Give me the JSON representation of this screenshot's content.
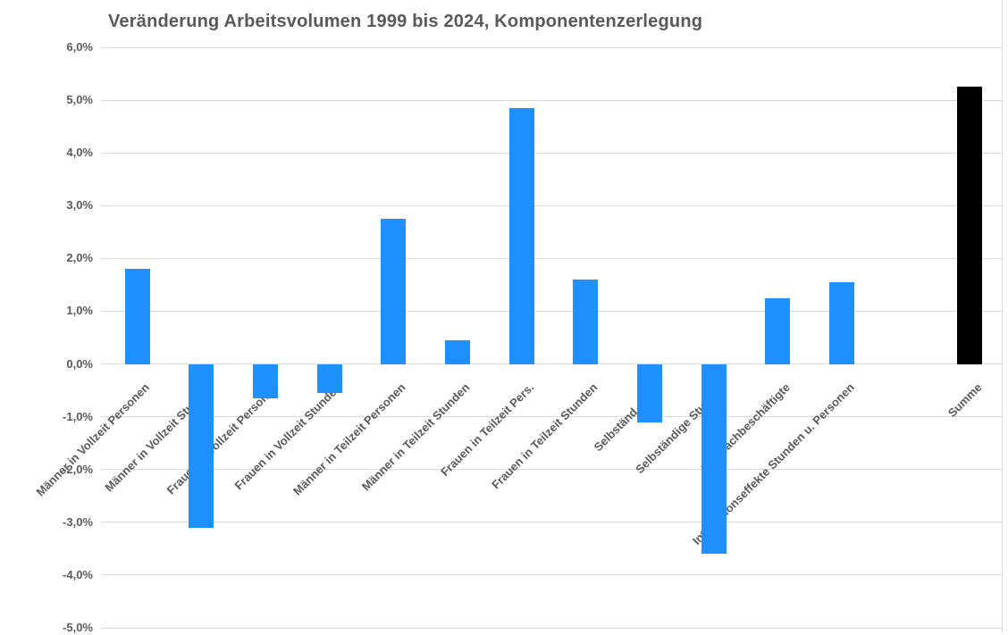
{
  "chart_data": {
    "type": "bar",
    "title": "Veränderung Arbeitsvolumen 1999 bis 2024, Komponentenzerlegung",
    "categories": [
      "Männer in Vollzeit Personen",
      "Männer in Vollzeit Stunden",
      "Frauen in Vollzeit Personen",
      "Frauen in Vollzeit Stunden",
      "Männer in Teilzeit Personen",
      "Männer in Teilzeit Stunden",
      "Frauen in Teilzeit Pers.",
      "Frauen in Teilzeit Stunden",
      "Selbständ. Pers.",
      "Selbständige Stunden",
      "Mehrfachbeschäftigte",
      "Interaktionseffekte Stunden u. Personen",
      "Summe"
    ],
    "values": [
      1.8,
      -3.1,
      -0.65,
      -0.55,
      2.75,
      0.45,
      4.85,
      1.6,
      -1.1,
      -3.6,
      1.25,
      1.55,
      5.25
    ],
    "bar_colors": [
      "#1e90ff",
      "#1e90ff",
      "#1e90ff",
      "#1e90ff",
      "#1e90ff",
      "#1e90ff",
      "#1e90ff",
      "#1e90ff",
      "#1e90ff",
      "#1e90ff",
      "#1e90ff",
      "#1e90ff",
      "#000000"
    ],
    "ylim": [
      -5,
      6
    ],
    "ytick_step": 1,
    "ytick_labels": [
      "6,0%",
      "5,0%",
      "4,0%",
      "3,0%",
      "2,0%",
      "1,0%",
      "0,0%",
      "-1,0%",
      "-2,0%",
      "-3,0%",
      "-4,0%",
      "-5,0%"
    ],
    "grid": true,
    "legend": false,
    "gap_before_last_category": true,
    "series_color": "#1e90ff",
    "summe_color": "#000000",
    "gridline_color": "#d9d9d9",
    "text_color": "#595959",
    "background_color": "#ffffff"
  }
}
